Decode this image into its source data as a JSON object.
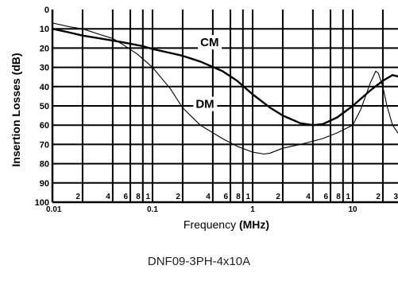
{
  "chart_data": {
    "type": "line",
    "title": "",
    "caption": "DNF09-3PH-4x10A",
    "xlabel": "Frequency",
    "xlabel_unit": "(MHz)",
    "ylabel": "Insertion Losses",
    "ylabel_unit": "(dB)",
    "x_scale": "log",
    "xlim": [
      0.01,
      30
    ],
    "ylim": [
      0,
      100
    ],
    "y_inverted": true,
    "grid": true,
    "y_ticks": [
      "0",
      "10",
      "20",
      "30",
      "40",
      "50",
      "60",
      "70",
      "80",
      "90",
      "100"
    ],
    "x_decade_labels": [
      "0.01",
      "0.1",
      "1",
      "10"
    ],
    "x_minor_labels": [
      "2",
      "4",
      "6",
      "8",
      "1",
      "2",
      "4",
      "6",
      "8",
      "1",
      "2",
      "4",
      "6",
      "8",
      "1",
      "2",
      "3"
    ],
    "series": [
      {
        "name": "CM",
        "x": [
          0.01,
          0.015,
          0.02,
          0.03,
          0.05,
          0.08,
          0.1,
          0.15,
          0.2,
          0.3,
          0.5,
          0.7,
          1,
          1.5,
          2,
          3,
          4,
          5,
          7,
          10,
          15,
          20,
          25,
          30
        ],
        "y": [
          10,
          12,
          13.5,
          15,
          17,
          19,
          20.5,
          22.5,
          24,
          27,
          32,
          37,
          44,
          51,
          55,
          59,
          60,
          59.5,
          56,
          50,
          42,
          37,
          34,
          35
        ]
      },
      {
        "name": "DM",
        "x": [
          0.01,
          0.015,
          0.02,
          0.03,
          0.04,
          0.05,
          0.07,
          0.1,
          0.15,
          0.2,
          0.3,
          0.5,
          0.7,
          1,
          1.3,
          1.5,
          2,
          3,
          5,
          7,
          10,
          12,
          15,
          17,
          18,
          20,
          22,
          25,
          30
        ],
        "y": [
          7,
          9,
          10,
          13,
          15,
          18,
          23,
          30,
          41,
          51,
          60,
          67,
          71,
          74,
          75,
          74.5,
          72,
          70,
          67,
          64,
          60,
          52,
          38,
          32,
          33,
          40,
          50,
          60,
          66
        ]
      }
    ]
  }
}
